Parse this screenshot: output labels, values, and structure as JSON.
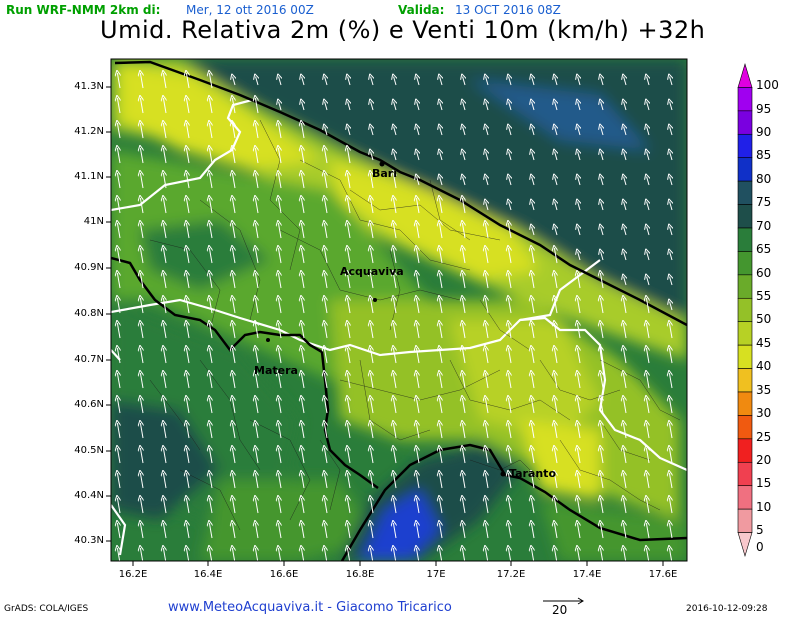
{
  "header": {
    "run_label": "Run WRF-NMM 2km di:",
    "run_value": "Mer, 12 ott 2016 00Z",
    "valid_label": "Valida:",
    "valid_value": "13 OCT 2016 08Z",
    "title": "Umid. Relativa 2m (%) e Venti 10m (km/h) +32h"
  },
  "map": {
    "lat_labels": [
      "41.3N",
      "41.2N",
      "41.1N",
      "41N",
      "40.9N",
      "40.8N",
      "40.7N",
      "40.6N",
      "40.5N",
      "40.4N",
      "40.3N"
    ],
    "lon_labels": [
      "16.2E",
      "16.4E",
      "16.6E",
      "16.8E",
      "17E",
      "17.2E",
      "17.4E",
      "17.6E"
    ],
    "cities": [
      "Bari",
      "Acquaviva",
      "Matera",
      "Taranto"
    ],
    "wind_direction": "from south-east",
    "colors": {
      "sea_deep": "#1e4e4a",
      "humid_high": "#2a7d3a",
      "humid_mid": "#5aa82f",
      "humid_low": "#a8cc2a",
      "humid_lowest": "#d7e021",
      "sea_blue": "#1c3fcf",
      "border_regional": "#ffffff",
      "coast": "#000000"
    }
  },
  "colorbar": {
    "levels": [
      "100",
      "95",
      "90",
      "85",
      "80",
      "75",
      "70",
      "65",
      "60",
      "55",
      "50",
      "45",
      "40",
      "35",
      "30",
      "25",
      "20",
      "15",
      "10",
      "5",
      "0"
    ],
    "colors": [
      "#e000e0",
      "#a000f0",
      "#7a00e0",
      "#2020e8",
      "#1030c8",
      "#205060",
      "#1e4e4a",
      "#2a7d3a",
      "#44962f",
      "#6aab2a",
      "#94c128",
      "#b7d125",
      "#d7e021",
      "#f0c020",
      "#f08a10",
      "#f05a10",
      "#f02020",
      "#f04050",
      "#f07080",
      "#f09aa0",
      "#f8c8cc"
    ]
  },
  "footer": {
    "left": "GrADS: COLA/IGES",
    "center": "www.MeteoAcquaviva.it - Giacomo Tricarico",
    "scale_value": "20",
    "right": "2016-10-12-09:28"
  }
}
